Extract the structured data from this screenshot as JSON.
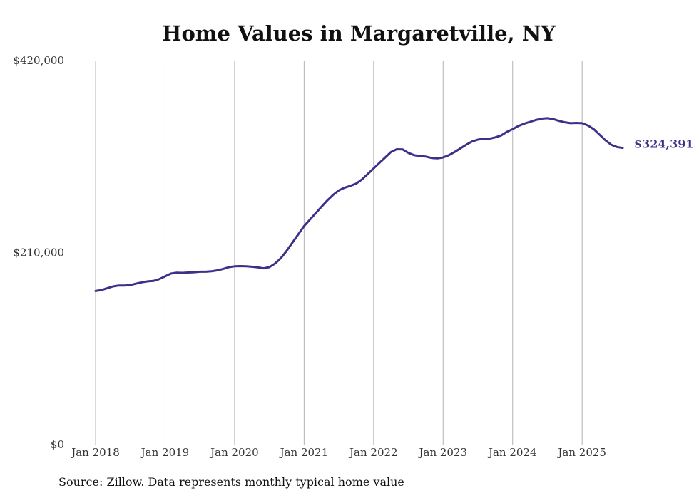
{
  "chart_data": {
    "type": "line",
    "title": "Home Values in Margaretville, NY",
    "source": "Source: Zillow. Data represents monthly typical home value",
    "xlabel": "",
    "ylabel": "",
    "ylim": [
      0,
      420000
    ],
    "yticks": [
      0,
      210000,
      420000
    ],
    "ytick_labels": [
      "$0",
      "$210,000",
      "$420,000"
    ],
    "xlim": [
      2018.0,
      2025.583
    ],
    "xticks": [
      2018,
      2019,
      2020,
      2021,
      2022,
      2023,
      2024,
      2025
    ],
    "xtick_labels": [
      "Jan 2018",
      "Jan 2019",
      "Jan 2020",
      "Jan 2021",
      "Jan 2022",
      "Jan 2023",
      "Jan 2024",
      "Jan 2025"
    ],
    "grid": "vertical",
    "line_color": "#3b3189",
    "end_label": "$324,391",
    "series": [
      {
        "name": "Typical home value",
        "x": [
          2018.0,
          2018.083,
          2018.167,
          2018.25,
          2018.333,
          2018.417,
          2018.5,
          2018.583,
          2018.667,
          2018.75,
          2018.833,
          2018.917,
          2019.0,
          2019.083,
          2019.167,
          2019.25,
          2019.333,
          2019.417,
          2019.5,
          2019.583,
          2019.667,
          2019.75,
          2019.833,
          2019.917,
          2020.0,
          2020.083,
          2020.167,
          2020.25,
          2020.333,
          2020.417,
          2020.5,
          2020.583,
          2020.667,
          2020.75,
          2020.833,
          2020.917,
          2021.0,
          2021.083,
          2021.167,
          2021.25,
          2021.333,
          2021.417,
          2021.5,
          2021.583,
          2021.667,
          2021.75,
          2021.833,
          2021.917,
          2022.0,
          2022.083,
          2022.167,
          2022.25,
          2022.333,
          2022.417,
          2022.5,
          2022.583,
          2022.667,
          2022.75,
          2022.833,
          2022.917,
          2023.0,
          2023.083,
          2023.167,
          2023.25,
          2023.333,
          2023.417,
          2023.5,
          2023.583,
          2023.667,
          2023.75,
          2023.833,
          2023.917,
          2024.0,
          2024.083,
          2024.167,
          2024.25,
          2024.333,
          2024.417,
          2024.5,
          2024.583,
          2024.667,
          2024.75,
          2024.833,
          2024.917,
          2025.0,
          2025.083,
          2025.167,
          2025.25,
          2025.333,
          2025.417,
          2025.5,
          2025.583
        ],
        "values": [
          168000,
          169000,
          171000,
          173000,
          174000,
          174000,
          174500,
          176000,
          177500,
          178500,
          179000,
          181000,
          184000,
          187000,
          188000,
          187800,
          188200,
          188500,
          189000,
          189000,
          189500,
          190500,
          192000,
          194000,
          195000,
          195200,
          195000,
          194500,
          193800,
          192800,
          194000,
          198000,
          204000,
          212000,
          221000,
          230000,
          239000,
          246000,
          253000,
          260000,
          267000,
          273000,
          278000,
          281000,
          283000,
          285500,
          290000,
          296000,
          302000,
          308000,
          314000,
          320000,
          323000,
          322800,
          319000,
          316500,
          315500,
          315000,
          313500,
          313000,
          314000,
          316500,
          320000,
          324000,
          328000,
          331500,
          333500,
          334500,
          334500,
          336000,
          338000,
          342000,
          345000,
          348500,
          351000,
          353000,
          355000,
          356500,
          357000,
          356000,
          354000,
          352500,
          351500,
          351800,
          351500,
          349000,
          345000,
          339000,
          333000,
          328000,
          325500,
          324391
        ]
      }
    ]
  }
}
